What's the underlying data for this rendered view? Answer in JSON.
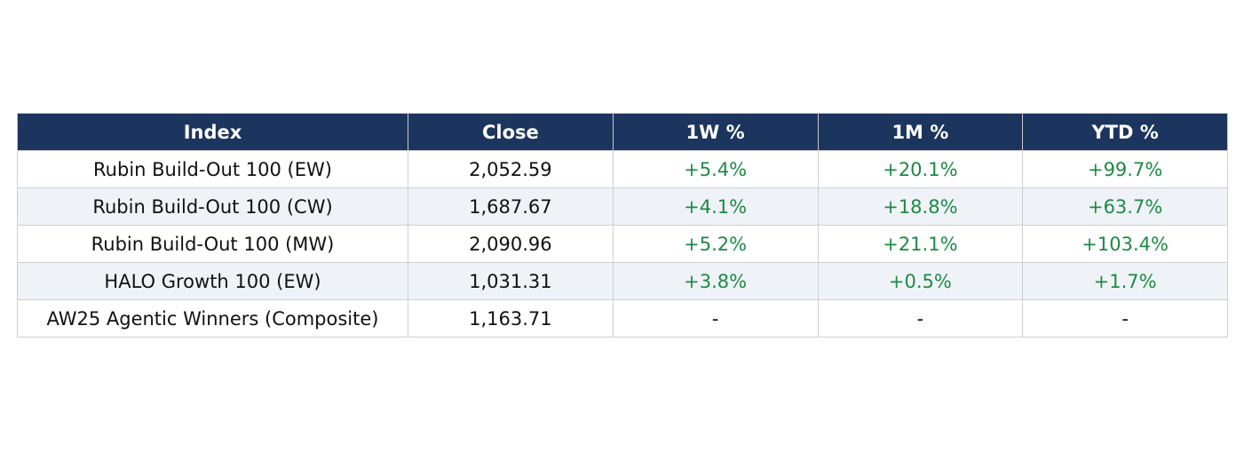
{
  "chart_data": {
    "type": "table",
    "columns": [
      "Index",
      "Close",
      "1W %",
      "1M %",
      "YTD %"
    ],
    "rows": [
      {
        "index": "Rubin Build-Out 100 (EW)",
        "close": "2,052.59",
        "w1": "+5.4%",
        "m1": "+20.1%",
        "ytd": "+99.7%"
      },
      {
        "index": "Rubin Build-Out 100 (CW)",
        "close": "1,687.67",
        "w1": "+4.1%",
        "m1": "+18.8%",
        "ytd": "+63.7%"
      },
      {
        "index": "Rubin Build-Out 100 (MW)",
        "close": "2,090.96",
        "w1": "+5.2%",
        "m1": "+21.1%",
        "ytd": "+103.4%"
      },
      {
        "index": "HALO Growth 100 (EW)",
        "close": "1,031.31",
        "w1": "+3.8%",
        "m1": "+0.5%",
        "ytd": "+1.7%"
      },
      {
        "index": "AW25 Agentic Winners (Composite)",
        "close": "1,163.71",
        "w1": "-",
        "m1": "-",
        "ytd": "-"
      }
    ],
    "colors": {
      "header_bg": "#1c355e",
      "header_text": "#ffffff",
      "positive": "#1e8a45",
      "alt_row_bg": "#eff3f8"
    }
  }
}
